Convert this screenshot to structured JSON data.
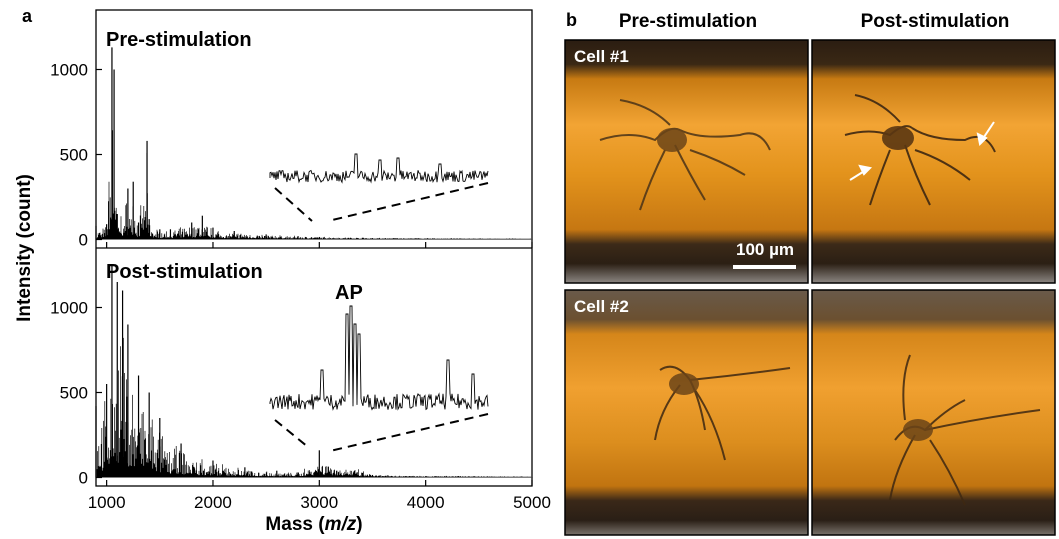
{
  "panels": {
    "a": {
      "tag": "a",
      "top_label": "Pre-stimulation",
      "bottom_label": "Post-stimulation",
      "ap_label": "AP",
      "ylabel": "Intensity (count)",
      "xlabel_prefix": "Mass (",
      "xlabel_var": "m/z",
      "xlabel_suffix": ")",
      "x_ticks": [
        "1000",
        "2000",
        "3000",
        "4000",
        "5000"
      ],
      "y_ticks_top": [
        "0",
        "500",
        "1000"
      ],
      "y_ticks_bottom": [
        "0",
        "500",
        "1000"
      ]
    },
    "b": {
      "tag": "b",
      "col_pre": "Pre-stimulation",
      "col_post": "Post-stimulation",
      "cell1": "Cell #1",
      "cell2": "Cell #2",
      "scale_bar": "100 µm"
    }
  },
  "colors": {
    "trace": "#000000",
    "micro_bg": "#d98a18",
    "micro_dark": "#2e2216"
  },
  "chart_data": [
    {
      "type": "line",
      "title": "Pre-stimulation",
      "xlabel": "Mass (m/z)",
      "ylabel": "Intensity (count)",
      "xlim": [
        900,
        5000
      ],
      "ylim": [
        -50,
        1350
      ],
      "series": [
        {
          "x": [
            900,
            1000,
            1050,
            1070,
            1100,
            1200,
            1250,
            1300,
            1380,
            1400,
            1500,
            1600,
            1800,
            1900,
            2000,
            2200,
            2500,
            2800,
            3000,
            3500,
            4000,
            4500,
            5000
          ],
          "y": [
            80,
            90,
            1130,
            1000,
            150,
            300,
            340,
            100,
            580,
            120,
            60,
            60,
            100,
            140,
            70,
            50,
            30,
            20,
            15,
            8,
            5,
            3,
            2
          ]
        }
      ]
    },
    {
      "type": "line",
      "title": "Post-stimulation",
      "xlabel": "Mass (m/z)",
      "ylabel": "Intensity (count)",
      "xlim": [
        900,
        5000
      ],
      "ylim": [
        -50,
        1350
      ],
      "series": [
        {
          "x": [
            900,
            1000,
            1050,
            1100,
            1150,
            1200,
            1300,
            1400,
            1500,
            1700,
            2000,
            2300,
            2600,
            2800,
            3000,
            3500,
            4000,
            4500,
            5000
          ],
          "y": [
            420,
            550,
            1250,
            1150,
            1100,
            900,
            600,
            500,
            350,
            200,
            100,
            60,
            40,
            30,
            160,
            15,
            8,
            5,
            3
          ]
        }
      ],
      "annotations": [
        "AP"
      ]
    }
  ]
}
